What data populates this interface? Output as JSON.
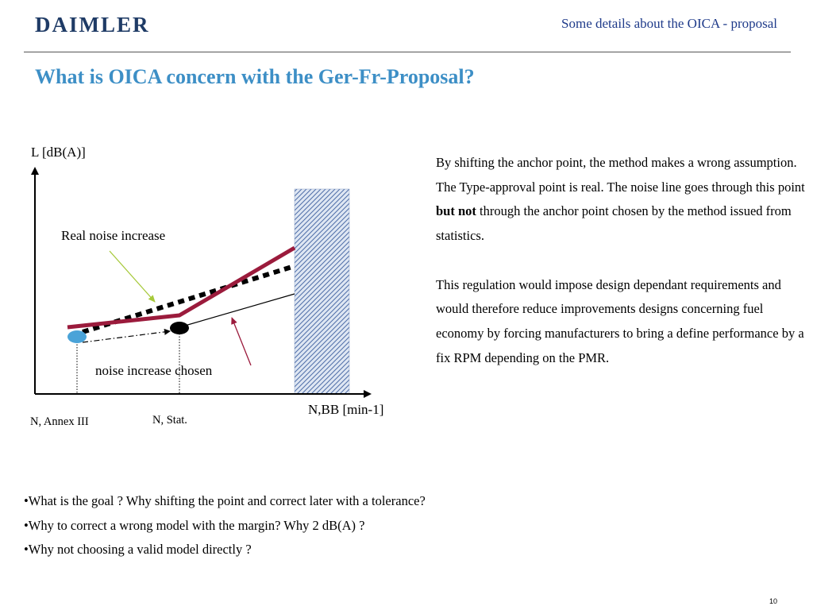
{
  "header": {
    "logo": "DAIMLER",
    "title": "Some details about the OICA - proposal"
  },
  "slide": {
    "title": "What is OICA concern with the Ger-Fr-Proposal?"
  },
  "diagram": {
    "y_axis_label": "L [dB(A)]",
    "x_axis_label": "N,BB [min-1]",
    "x_tick_annex": "N, Annex III",
    "x_tick_stat": "N, Stat.",
    "label_real": "Real noise increase",
    "label_chosen": "noise increase chosen",
    "colors": {
      "real_line": "#9b1b3c",
      "anchor_point": "#4aa3d8",
      "arrow_green": "#a6c93a",
      "arrow_red": "#9b1b3c",
      "hatch": "#4f6ea8"
    }
  },
  "text": {
    "p1_line1": "By shifting the anchor point, the method makes a wrong assumption.",
    "p2_a": "The Type-approval point is real. The noise line goes through this point ",
    "p2_bold": "but not",
    "p2_b": " through the anchor point chosen by the method issued from statistics.",
    "p3": "This regulation would impose design dependant requirements and would therefore reduce improvements designs concerning fuel economy by forcing manufacturers to bring a define performance by a fix RPM depending on the PMR."
  },
  "bullets": [
    "•What is the goal ? Why shifting the point and correct later with a tolerance?",
    "•Why to correct a wrong model with the margin? Why 2 dB(A) ?",
    "•Why not choosing a valid model directly ?"
  ],
  "page_number": "10"
}
